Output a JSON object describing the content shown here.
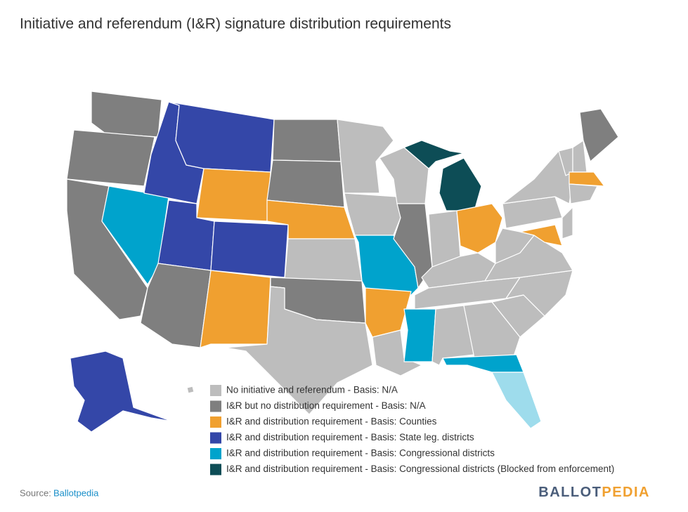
{
  "title": "Initiative and referendum (I&R) signature distribution requirements",
  "legend": {
    "items": [
      {
        "label": "No initiative and referendum - Basis: N/A",
        "color": "#bdbdbd"
      },
      {
        "label": "I&R but no distribution requirement - Basis: N/A",
        "color": "#7f7f7f"
      },
      {
        "label": "I&R and distribution requirement - Basis: Counties",
        "color": "#f0a030"
      },
      {
        "label": "I&R and distribution requirement - Basis: State leg. districts",
        "color": "#3447a8"
      },
      {
        "label": "I&R and distribution requirement - Basis: Congressional districts",
        "color": "#00a3cc"
      },
      {
        "label": "I&R and distribution requirement - Basis: Congressional districts (Blocked from enforcement)",
        "color": "#0d4d56"
      }
    ],
    "extra_color": "#9edcec"
  },
  "source": {
    "label": "Source:",
    "name": "Ballotpedia"
  },
  "brand": {
    "first": "BALLOT",
    "second": "PEDIA"
  }
}
